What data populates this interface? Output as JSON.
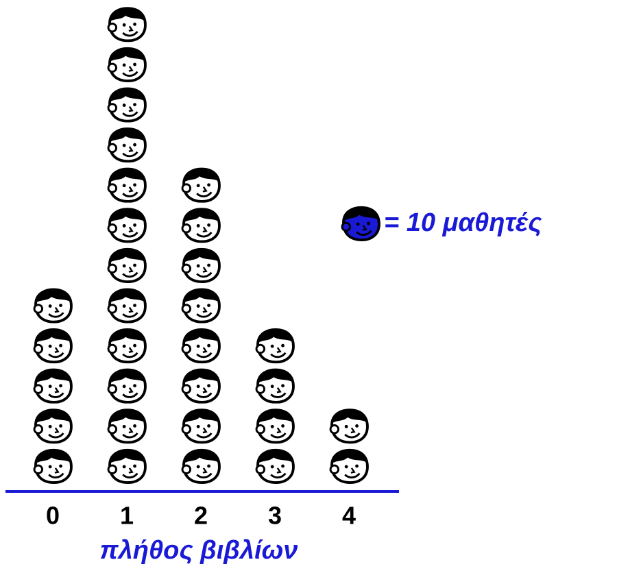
{
  "chart_data": {
    "type": "pictogram",
    "xlabel": "πλήθος βιβλίων",
    "categories": [
      "0",
      "1",
      "2",
      "3",
      "4"
    ],
    "values": [
      50,
      120,
      80,
      40,
      20
    ],
    "key": {
      "value": 10,
      "label": "= 10 μαθητές"
    },
    "color": "#1a1ad6"
  }
}
